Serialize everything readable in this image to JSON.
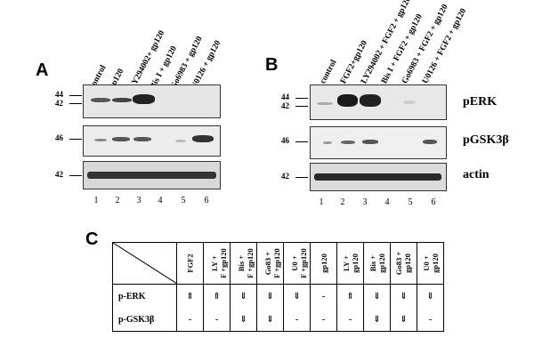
{
  "panel_a": {
    "letter": "A",
    "lanes": [
      "control",
      "gp120",
      "LY294002+ gp120",
      "Bis I + gp120",
      "Go6983 + gp120",
      "U0126 + gp120"
    ],
    "mw_top": [
      "44",
      "42"
    ],
    "mw_mid": "46",
    "mw_bot": "42",
    "lane_numbers": [
      "1",
      "2",
      "3",
      "4",
      "5",
      "6"
    ]
  },
  "panel_b": {
    "letter": "B",
    "lanes": [
      "control",
      "FGF2+gp120",
      "LY294002 + FGF2 + gp120",
      "Bis I + FGF2 + gp120",
      "Go6983 + FGF2 + gp120",
      "U0126 + FGF2 + gp120"
    ],
    "mw_top": [
      "44",
      "42"
    ],
    "mw_mid": "46",
    "mw_bot": "42",
    "lane_numbers": [
      "1",
      "2",
      "3",
      "4",
      "5",
      "6"
    ],
    "row_labels": [
      "pERK",
      "pGSK3β",
      "actin"
    ]
  },
  "panel_c": {
    "letter": "C",
    "columns": [
      [
        "FGF2"
      ],
      [
        "LY +",
        "F +gp120"
      ],
      [
        "Bis +",
        "F +gp120"
      ],
      [
        "Go83 +",
        "F +gp120"
      ],
      [
        "U0 +",
        "F +gp120"
      ],
      [
        "gp120"
      ],
      [
        "LY +",
        "gp120"
      ],
      [
        "Bis +",
        "gp120"
      ],
      [
        "Go83 +",
        "gp120"
      ],
      [
        "U0 +",
        "gp120"
      ]
    ],
    "rows": [
      {
        "label": "p-ERK",
        "values": [
          "⇑",
          "⇑",
          "⇓",
          "⇓",
          "⇓",
          "-",
          "⇑",
          "⇓",
          "⇓",
          "⇓"
        ]
      },
      {
        "label": "p-GSK3β",
        "values": [
          "-",
          "-",
          "⇓",
          "⇓",
          "-",
          "-",
          "-",
          "⇓",
          "⇓",
          "-"
        ]
      }
    ]
  }
}
